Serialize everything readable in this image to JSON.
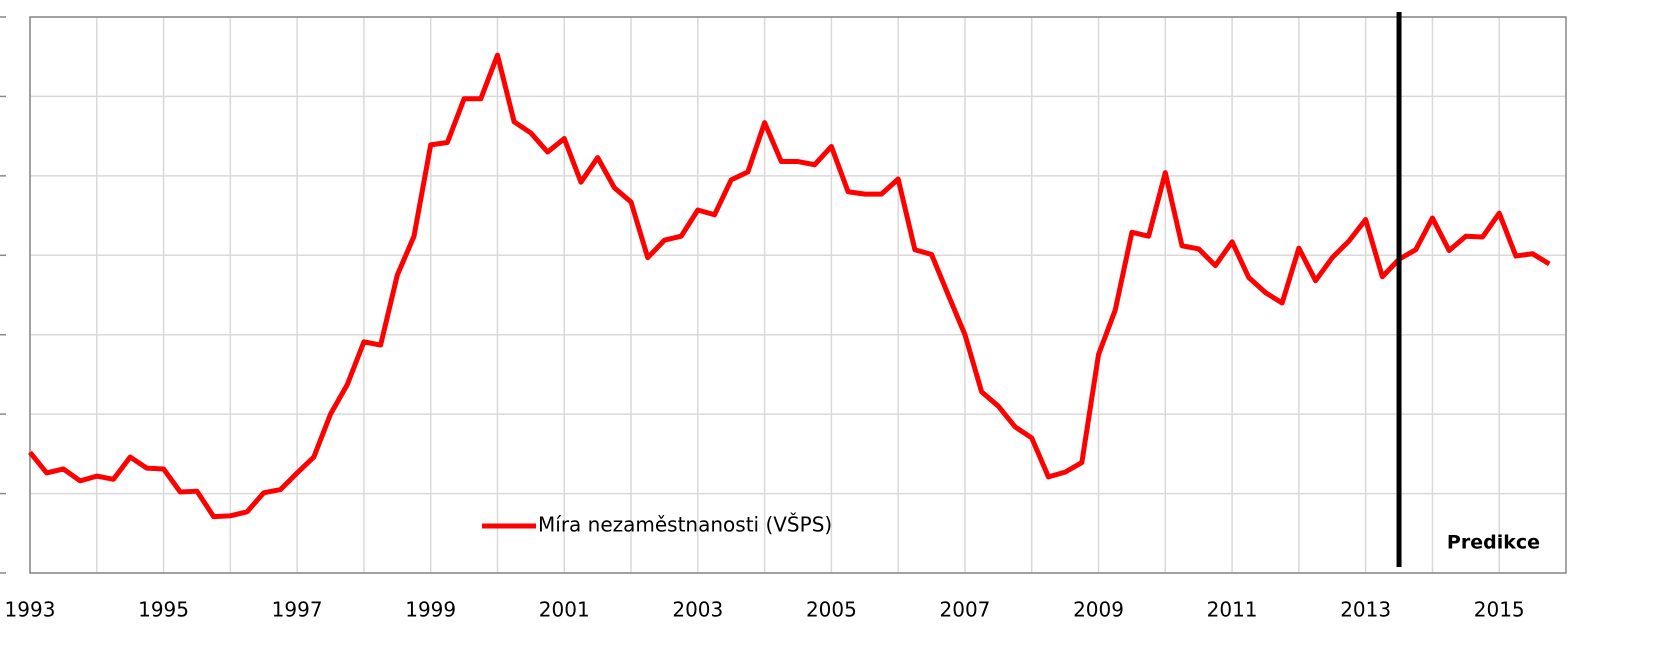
{
  "chart_data": {
    "type": "line",
    "x": [
      1993,
      1993.25,
      1993.5,
      1993.75,
      1994,
      1994.25,
      1994.5,
      1994.75,
      1995,
      1995.25,
      1995.5,
      1995.75,
      1996,
      1996.25,
      1996.5,
      1996.75,
      1997,
      1997.25,
      1997.5,
      1997.75,
      1998,
      1998.25,
      1998.5,
      1998.75,
      1999,
      1999.25,
      1999.5,
      1999.75,
      2000,
      2000.25,
      2000.5,
      2000.75,
      2001,
      2001.25,
      2001.5,
      2001.75,
      2002,
      2002.25,
      2002.5,
      2002.75,
      2003,
      2003.25,
      2003.5,
      2003.75,
      2004,
      2004.25,
      2004.5,
      2004.75,
      2005,
      2005.25,
      2005.5,
      2005.75,
      2006,
      2006.25,
      2006.5,
      2006.75,
      2007,
      2007.25,
      2007.5,
      2007.75,
      2008,
      2008.25,
      2008.5,
      2008.75,
      2009,
      2009.25,
      2009.5,
      2009.75,
      2010,
      2010.25,
      2010.5,
      2010.75,
      2011,
      2011.25,
      2011.5,
      2011.75,
      2012,
      2012.25,
      2012.5,
      2012.75,
      2013,
      2013.25,
      2013.5,
      2013.75,
      2014,
      2014.25,
      2014.5,
      2014.75,
      2015,
      2015.25,
      2015.5,
      2015.75
    ],
    "series": [
      {
        "name": "Míra nezaměstnanosti (VŠPS)",
        "color": "#ff0000",
        "values": [
          4.52,
          4.26,
          4.31,
          4.16,
          4.22,
          4.18,
          4.46,
          4.32,
          4.31,
          4.02,
          4.03,
          3.71,
          3.72,
          3.77,
          4.01,
          4.05,
          4.26,
          4.46,
          5.0,
          5.37,
          5.91,
          5.87,
          6.75,
          7.24,
          8.39,
          8.42,
          8.97,
          8.97,
          9.52,
          8.68,
          8.54,
          8.3,
          8.47,
          7.92,
          8.23,
          7.85,
          7.67,
          6.97,
          7.19,
          7.24,
          7.57,
          7.51,
          7.95,
          8.05,
          8.67,
          8.18,
          8.18,
          8.14,
          8.37,
          7.8,
          7.77,
          7.77,
          7.96,
          7.07,
          7.01,
          6.5,
          6.0,
          5.28,
          5.1,
          4.84,
          4.7,
          4.21,
          4.27,
          4.39,
          5.75,
          6.31,
          7.29,
          7.24,
          8.04,
          7.12,
          7.08,
          6.87,
          7.17,
          6.72,
          6.53,
          6.4,
          7.09,
          6.68,
          6.97,
          7.18,
          7.45,
          6.73,
          6.95,
          7.07,
          7.47,
          7.06,
          7.24,
          7.23,
          7.53,
          6.99,
          7.02,
          6.89
        ]
      }
    ],
    "xlim": [
      1993,
      2016
    ],
    "xticks": [
      1993,
      1995,
      1997,
      1999,
      2001,
      2003,
      2005,
      2007,
      2009,
      2011,
      2013,
      2015
    ],
    "x_minor_ticks": [
      1994,
      1996,
      1998,
      2000,
      2002,
      2004,
      2006,
      2008,
      2010,
      2012,
      2014
    ],
    "ylim": [
      3,
      10
    ],
    "yticks": [
      3,
      4,
      5,
      6,
      7,
      8,
      9,
      10
    ],
    "grid": true,
    "prediction_line": 2013.5,
    "annotation": "Predikce"
  }
}
